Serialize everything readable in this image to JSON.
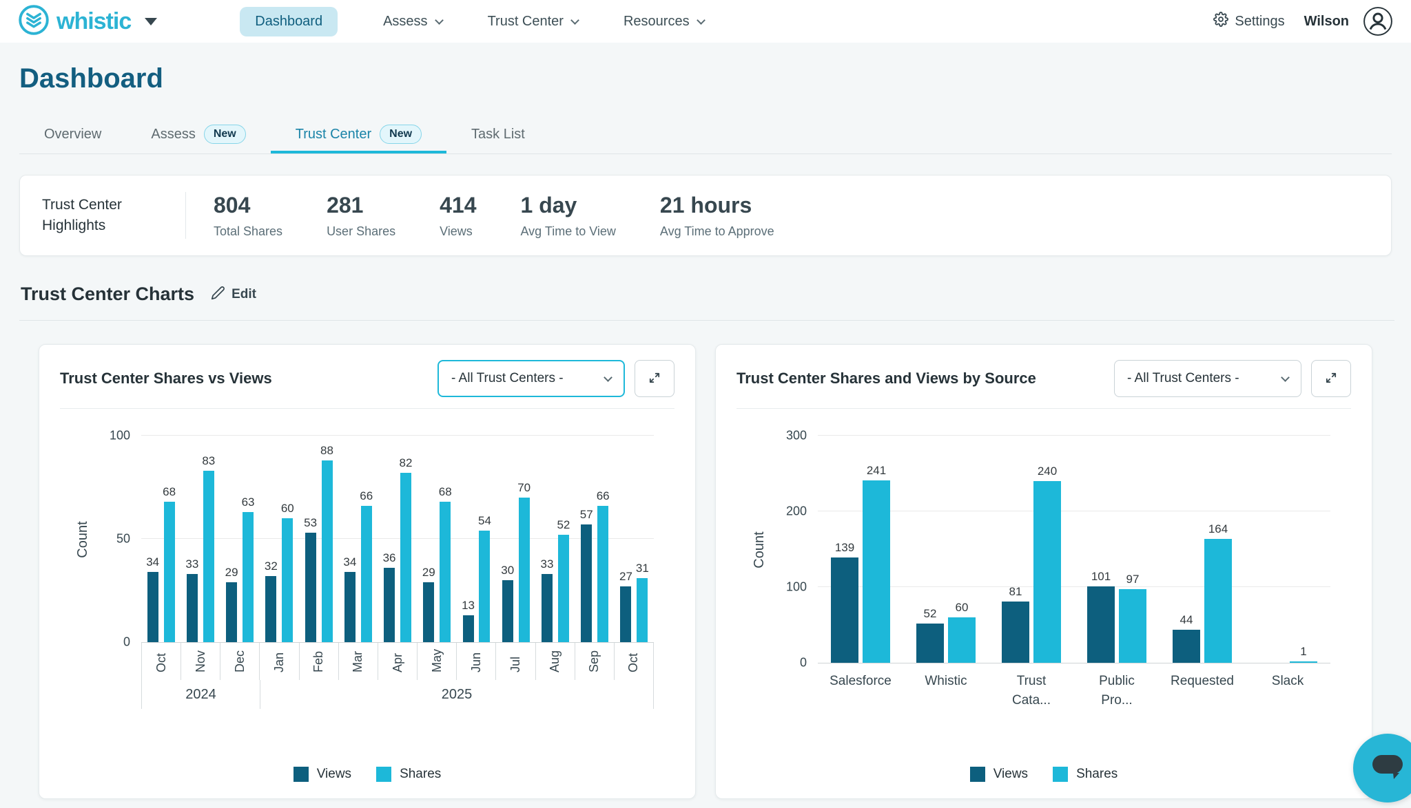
{
  "nav": {
    "brand": "whistic",
    "items": [
      {
        "label": "Dashboard"
      },
      {
        "label": "Assess"
      },
      {
        "label": "Trust Center"
      },
      {
        "label": "Resources"
      }
    ],
    "settings_label": "Settings",
    "user_name": "Wilson"
  },
  "page_title": "Dashboard",
  "tabs": [
    {
      "label": "Overview"
    },
    {
      "label": "Assess",
      "badge": "New"
    },
    {
      "label": "Trust Center",
      "badge": "New",
      "active": true
    },
    {
      "label": "Task List"
    }
  ],
  "highlights": {
    "title": "Trust Center Highlights",
    "stats": [
      {
        "value": "804",
        "label": "Total Shares"
      },
      {
        "value": "281",
        "label": "User Shares"
      },
      {
        "value": "414",
        "label": "Views"
      },
      {
        "value": "1 day",
        "label": "Avg Time to View"
      },
      {
        "value": "21 hours",
        "label": "Avg Time to Approve"
      }
    ]
  },
  "charts_section": {
    "title": "Trust Center Charts",
    "edit_label": "Edit"
  },
  "colors": {
    "accent_cyan": "#1db8d9",
    "dark_teal": "#0d5f7e",
    "brand_cyan": "#2cb3d4"
  },
  "chart_data": [
    {
      "type": "bar",
      "title": "Trust Center Shares vs Views",
      "filter_value": "- All Trust Centers -",
      "ylabel": "Count",
      "ylim": [
        0,
        100
      ],
      "yticks": [
        0,
        50,
        100
      ],
      "grid": true,
      "legend_position": "bottom",
      "categories": [
        "Oct",
        "Nov",
        "Dec",
        "Jan",
        "Feb",
        "Mar",
        "Apr",
        "May",
        "Jun",
        "Jul",
        "Aug",
        "Sep",
        "Oct"
      ],
      "year_groups": [
        {
          "label": "2024",
          "span": 3
        },
        {
          "label": "2025",
          "span": 10
        }
      ],
      "series": [
        {
          "name": "Views",
          "color": "#0d5f7e",
          "values": [
            34,
            33,
            29,
            32,
            53,
            34,
            36,
            29,
            13,
            30,
            33,
            57,
            27
          ]
        },
        {
          "name": "Shares",
          "color": "#1db8d9",
          "values": [
            68,
            83,
            63,
            60,
            88,
            66,
            82,
            68,
            54,
            70,
            52,
            66,
            31
          ]
        }
      ]
    },
    {
      "type": "bar",
      "title": "Trust Center Shares and Views by Source",
      "filter_value": "- All Trust Centers -",
      "ylabel": "Count",
      "ylim": [
        0,
        300
      ],
      "yticks": [
        0,
        100,
        200,
        300
      ],
      "grid": true,
      "legend_position": "bottom",
      "categories": [
        "Salesforce",
        "Whistic",
        [
          "Trust",
          "Cata..."
        ],
        [
          "Public",
          "Pro..."
        ],
        "Requested",
        "Slack"
      ],
      "series": [
        {
          "name": "Views",
          "color": "#0d5f7e",
          "values": [
            139,
            52,
            81,
            101,
            44,
            0
          ]
        },
        {
          "name": "Shares",
          "color": "#1db8d9",
          "values": [
            241,
            60,
            240,
            97,
            164,
            1
          ]
        }
      ]
    }
  ]
}
